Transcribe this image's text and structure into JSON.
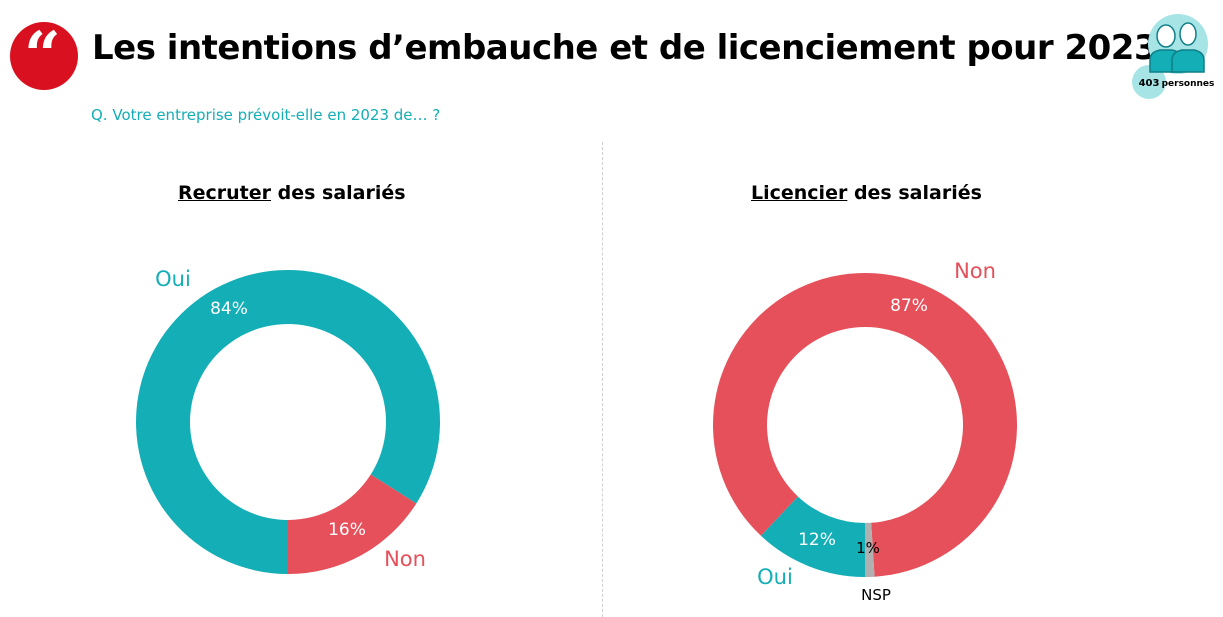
{
  "header": {
    "title": "Les intentions d’embauche et de licenciement pour 2023",
    "quote_icon": "quote-icon",
    "question": "Q. Votre entreprise prévoit-elle en 2023 de… ?",
    "sample_count": "403",
    "sample_label": "personnes"
  },
  "colors": {
    "teal": "#14aeb6",
    "red": "#e5505a",
    "grey": "#b0b0b0"
  },
  "chart_data": [
    {
      "type": "pie",
      "title_underlined": "Recruter",
      "title_rest": " des salariés",
      "slices": [
        {
          "label": "Oui",
          "value": 84,
          "value_label": "84%",
          "color": "#14aeb6"
        },
        {
          "label": "Non",
          "value": 16,
          "value_label": "16%",
          "color": "#e5505a"
        }
      ]
    },
    {
      "type": "pie",
      "title_underlined": "Licencier",
      "title_rest": " des salariés",
      "slices": [
        {
          "label": "Oui",
          "value": 12,
          "value_label": "12%",
          "color": "#14aeb6"
        },
        {
          "label": "Non",
          "value": 87,
          "value_label": "87%",
          "color": "#e5505a"
        },
        {
          "label": "NSP",
          "value": 1,
          "value_label": "1%",
          "color": "#b0b0b0"
        }
      ]
    }
  ]
}
